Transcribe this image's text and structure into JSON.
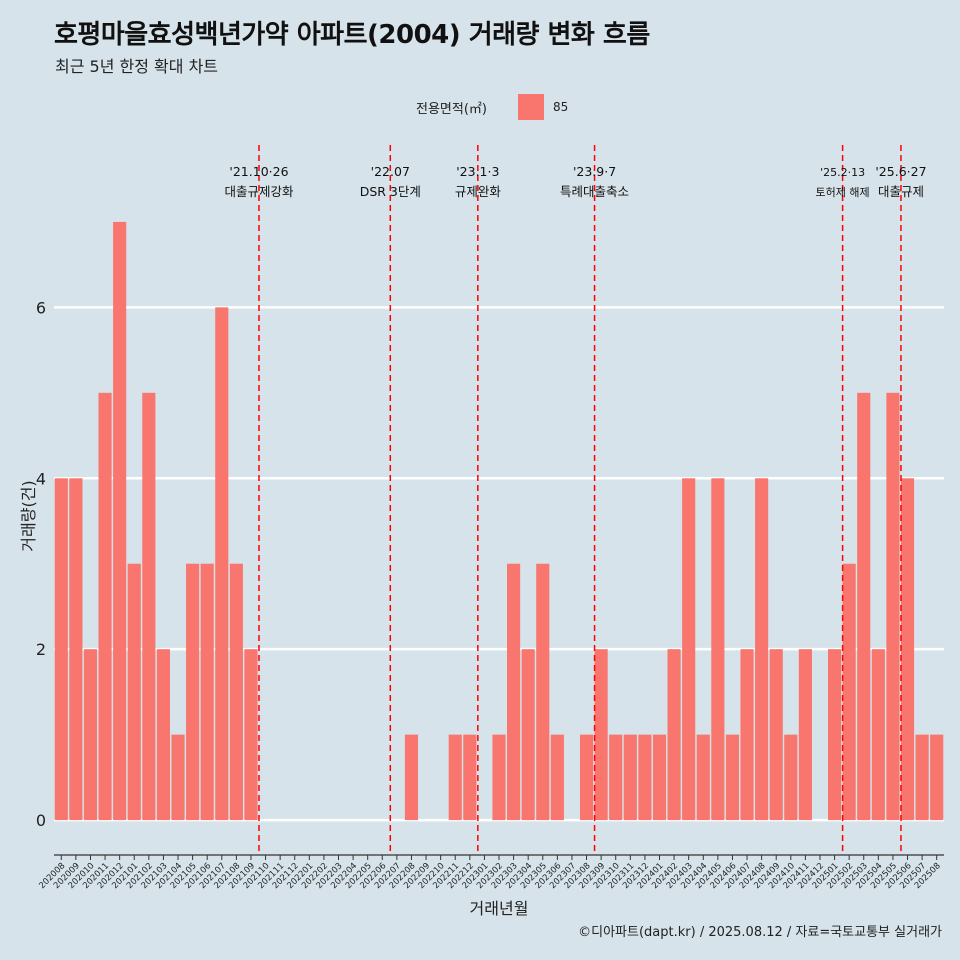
{
  "title": "호평마을효성백년가약 아파트(2004) 거래량 변화 흐름",
  "subtitle": "최근 5년 한정 확대 차트",
  "caption": "©디아파트(dapt.kr) / 2025.08.12 / 자료=국토교통부 실거래가",
  "colors": {
    "background": "#d6e3ea",
    "bar": "#f8766d",
    "grid": "#ffffff",
    "event_line": "#ff0000"
  },
  "legend": {
    "title": "전용면적(㎡)",
    "items": [
      {
        "label": "85",
        "color": "#f8766d"
      }
    ]
  },
  "chart_data": {
    "type": "bar",
    "xlabel": "거래년월",
    "ylabel": "거래량(건)",
    "ylim": [
      -0.35,
      7.9
    ],
    "yticks": [
      0,
      2,
      4,
      6
    ],
    "grid": true,
    "legend_position": "top",
    "categories": [
      "202008",
      "202009",
      "202010",
      "202011",
      "202012",
      "202101",
      "202102",
      "202103",
      "202104",
      "202105",
      "202106",
      "202107",
      "202108",
      "202109",
      "202110",
      "202111",
      "202112",
      "202201",
      "202202",
      "202203",
      "202204",
      "202205",
      "202206",
      "202207",
      "202208",
      "202209",
      "202210",
      "202211",
      "202212",
      "202301",
      "202302",
      "202303",
      "202304",
      "202305",
      "202306",
      "202307",
      "202308",
      "202309",
      "202310",
      "202311",
      "202312",
      "202401",
      "202402",
      "202403",
      "202404",
      "202405",
      "202406",
      "202407",
      "202408",
      "202409",
      "202410",
      "202411",
      "202412",
      "202501",
      "202502",
      "202503",
      "202504",
      "202505",
      "202506",
      "202507",
      "202508"
    ],
    "series": [
      {
        "name": "85",
        "values": [
          4,
          4,
          2,
          5,
          7,
          3,
          5,
          2,
          1,
          3,
          3,
          6,
          3,
          2,
          0,
          0,
          0,
          0,
          0,
          0,
          0,
          0,
          0,
          0,
          1,
          0,
          0,
          1,
          1,
          0,
          1,
          3,
          2,
          3,
          1,
          0,
          1,
          2,
          1,
          1,
          1,
          1,
          2,
          4,
          1,
          4,
          1,
          2,
          4,
          2,
          1,
          2,
          0,
          2,
          3,
          5,
          2,
          5,
          4,
          1,
          1
        ]
      }
    ],
    "events": [
      {
        "x": "202110",
        "date": "'21.10·26",
        "label": "대출규제강화",
        "size": "large"
      },
      {
        "x": "202207",
        "date": "'22.07",
        "label": "DSR 3단계",
        "size": "large"
      },
      {
        "x": "202301",
        "date": "'23.1·3",
        "label": "규제완화",
        "size": "large"
      },
      {
        "x": "202309",
        "date": "'23.9·7",
        "label": "특례대출축소",
        "size": "large"
      },
      {
        "x": "202502",
        "date": "'25.2·13",
        "label": "토허제 해제",
        "size": "small"
      },
      {
        "x": "202506",
        "date": "'25.6·27",
        "label": "대출규제",
        "size": "large"
      }
    ]
  }
}
